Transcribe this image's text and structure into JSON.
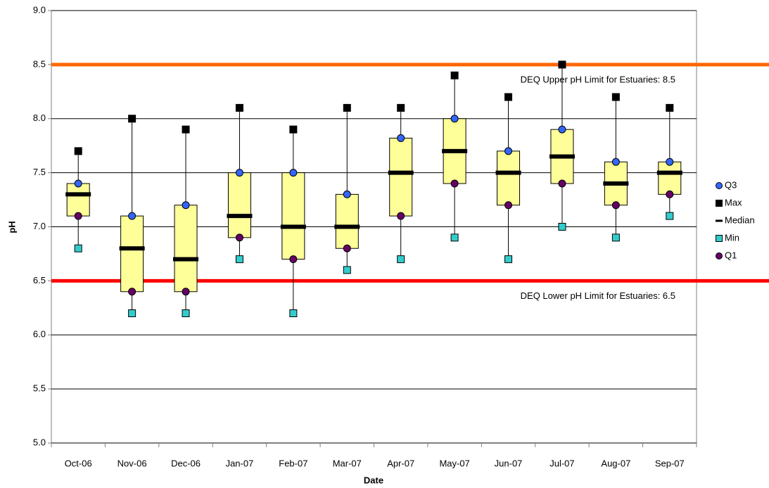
{
  "chart_data": {
    "type": "box",
    "x_label": "Date",
    "y_label": "pH",
    "categories": [
      "Oct-06",
      "Nov-06",
      "Dec-06",
      "Jan-07",
      "Feb-07",
      "Mar-07",
      "Apr-07",
      "May-07",
      "Jun-07",
      "Jul-07",
      "Aug-07",
      "Sep-07"
    ],
    "series": [
      {
        "name": "Q3",
        "color": "#3366ff",
        "marker": "circle",
        "values": [
          7.4,
          7.1,
          7.2,
          7.5,
          7.5,
          7.3,
          7.82,
          8.0,
          7.7,
          7.9,
          7.6,
          7.6
        ]
      },
      {
        "name": "Max",
        "color": "#000000",
        "marker": "square",
        "values": [
          7.7,
          8.0,
          7.9,
          8.1,
          7.9,
          8.1,
          8.1,
          8.4,
          8.2,
          8.5,
          8.2,
          8.1
        ]
      },
      {
        "name": "Median",
        "color": "#000000",
        "marker": "dash",
        "values": [
          7.3,
          6.8,
          6.7,
          7.1,
          7.0,
          7.0,
          7.5,
          7.7,
          7.5,
          7.65,
          7.4,
          7.5
        ]
      },
      {
        "name": "Min",
        "color": "#33cccc",
        "marker": "square",
        "values": [
          6.8,
          6.2,
          6.2,
          6.7,
          6.2,
          6.6,
          6.7,
          6.9,
          6.7,
          7.0,
          6.9,
          7.1
        ]
      },
      {
        "name": "Q1",
        "color": "#660066",
        "marker": "circle",
        "values": [
          7.1,
          6.4,
          6.4,
          6.9,
          6.7,
          6.8,
          7.1,
          7.4,
          7.2,
          7.4,
          7.2,
          7.3
        ]
      }
    ],
    "box_color": "#ffff99",
    "reference_lines": [
      {
        "value": 8.5,
        "label": "DEQ Upper pH Limit for Estuaries: 8.5",
        "color": "#ff6600"
      },
      {
        "value": 6.5,
        "label": "DEQ Lower pH Limit for Estuaries: 6.5",
        "color": "#ff0000"
      }
    ],
    "ylim": [
      5,
      9
    ],
    "yticks": [
      {
        "value": 5,
        "label": "5.0"
      },
      {
        "value": 5.5,
        "label": "5.5"
      },
      {
        "value": 6,
        "label": "6.0"
      },
      {
        "value": 6.5,
        "label": "6.5"
      },
      {
        "value": 7,
        "label": "7.0"
      },
      {
        "value": 7.5,
        "label": "7.5"
      },
      {
        "value": 8,
        "label": "8.0"
      },
      {
        "value": 8.5,
        "label": "8.5"
      },
      {
        "value": 9,
        "label": "9.0"
      }
    ],
    "grid": true
  }
}
